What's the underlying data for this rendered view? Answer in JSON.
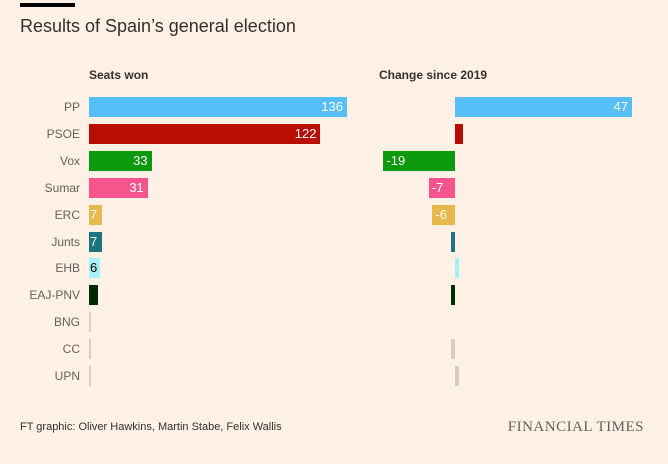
{
  "chart_data": {
    "type": "bar",
    "title": "Results of Spain’s general election",
    "categories": [
      "PP",
      "PSOE",
      "Vox",
      "Sumar",
      "ERC",
      "Junts",
      "EHB",
      "EAJ-PNV",
      "BNG",
      "CC",
      "UPN"
    ],
    "series": [
      {
        "name": "Seats won",
        "values": [
          136,
          122,
          33,
          31,
          7,
          7,
          6,
          5,
          1,
          1,
          1
        ]
      },
      {
        "name": "Change since 2019",
        "values": [
          47,
          2,
          -19,
          -7,
          -6,
          -1,
          1,
          -1,
          0,
          -1,
          1
        ]
      }
    ],
    "shown_seat_labels": [
      "136",
      "122",
      "33",
      "31",
      "7",
      "7",
      "6",
      "",
      "",
      "",
      ""
    ],
    "shown_change_labels": [
      "47",
      "",
      "-19",
      "-7",
      "-6",
      "",
      "",
      "",
      "",
      "",
      ""
    ],
    "colors": [
      "#56bff7",
      "#b80d00",
      "#0b9a0b",
      "#f5548d",
      "#e8b84a",
      "#1d737f",
      "#a6f0f7",
      "#002a00",
      "#d9ccc4",
      "#d9ccc4",
      "#d9ccc4"
    ],
    "label_colors": [
      "#ffffff",
      "#ffffff",
      "#ffffff",
      "#ffffff",
      "#ffffff",
      "#ffffff",
      "#000000",
      "#ffffff",
      "#ffffff",
      "#ffffff",
      "#ffffff"
    ]
  },
  "footer": {
    "credit": "FT graphic: Oliver Hawkins, Martin Stabe, Felix Wallis",
    "logo": "FINANCIAL TIMES"
  }
}
